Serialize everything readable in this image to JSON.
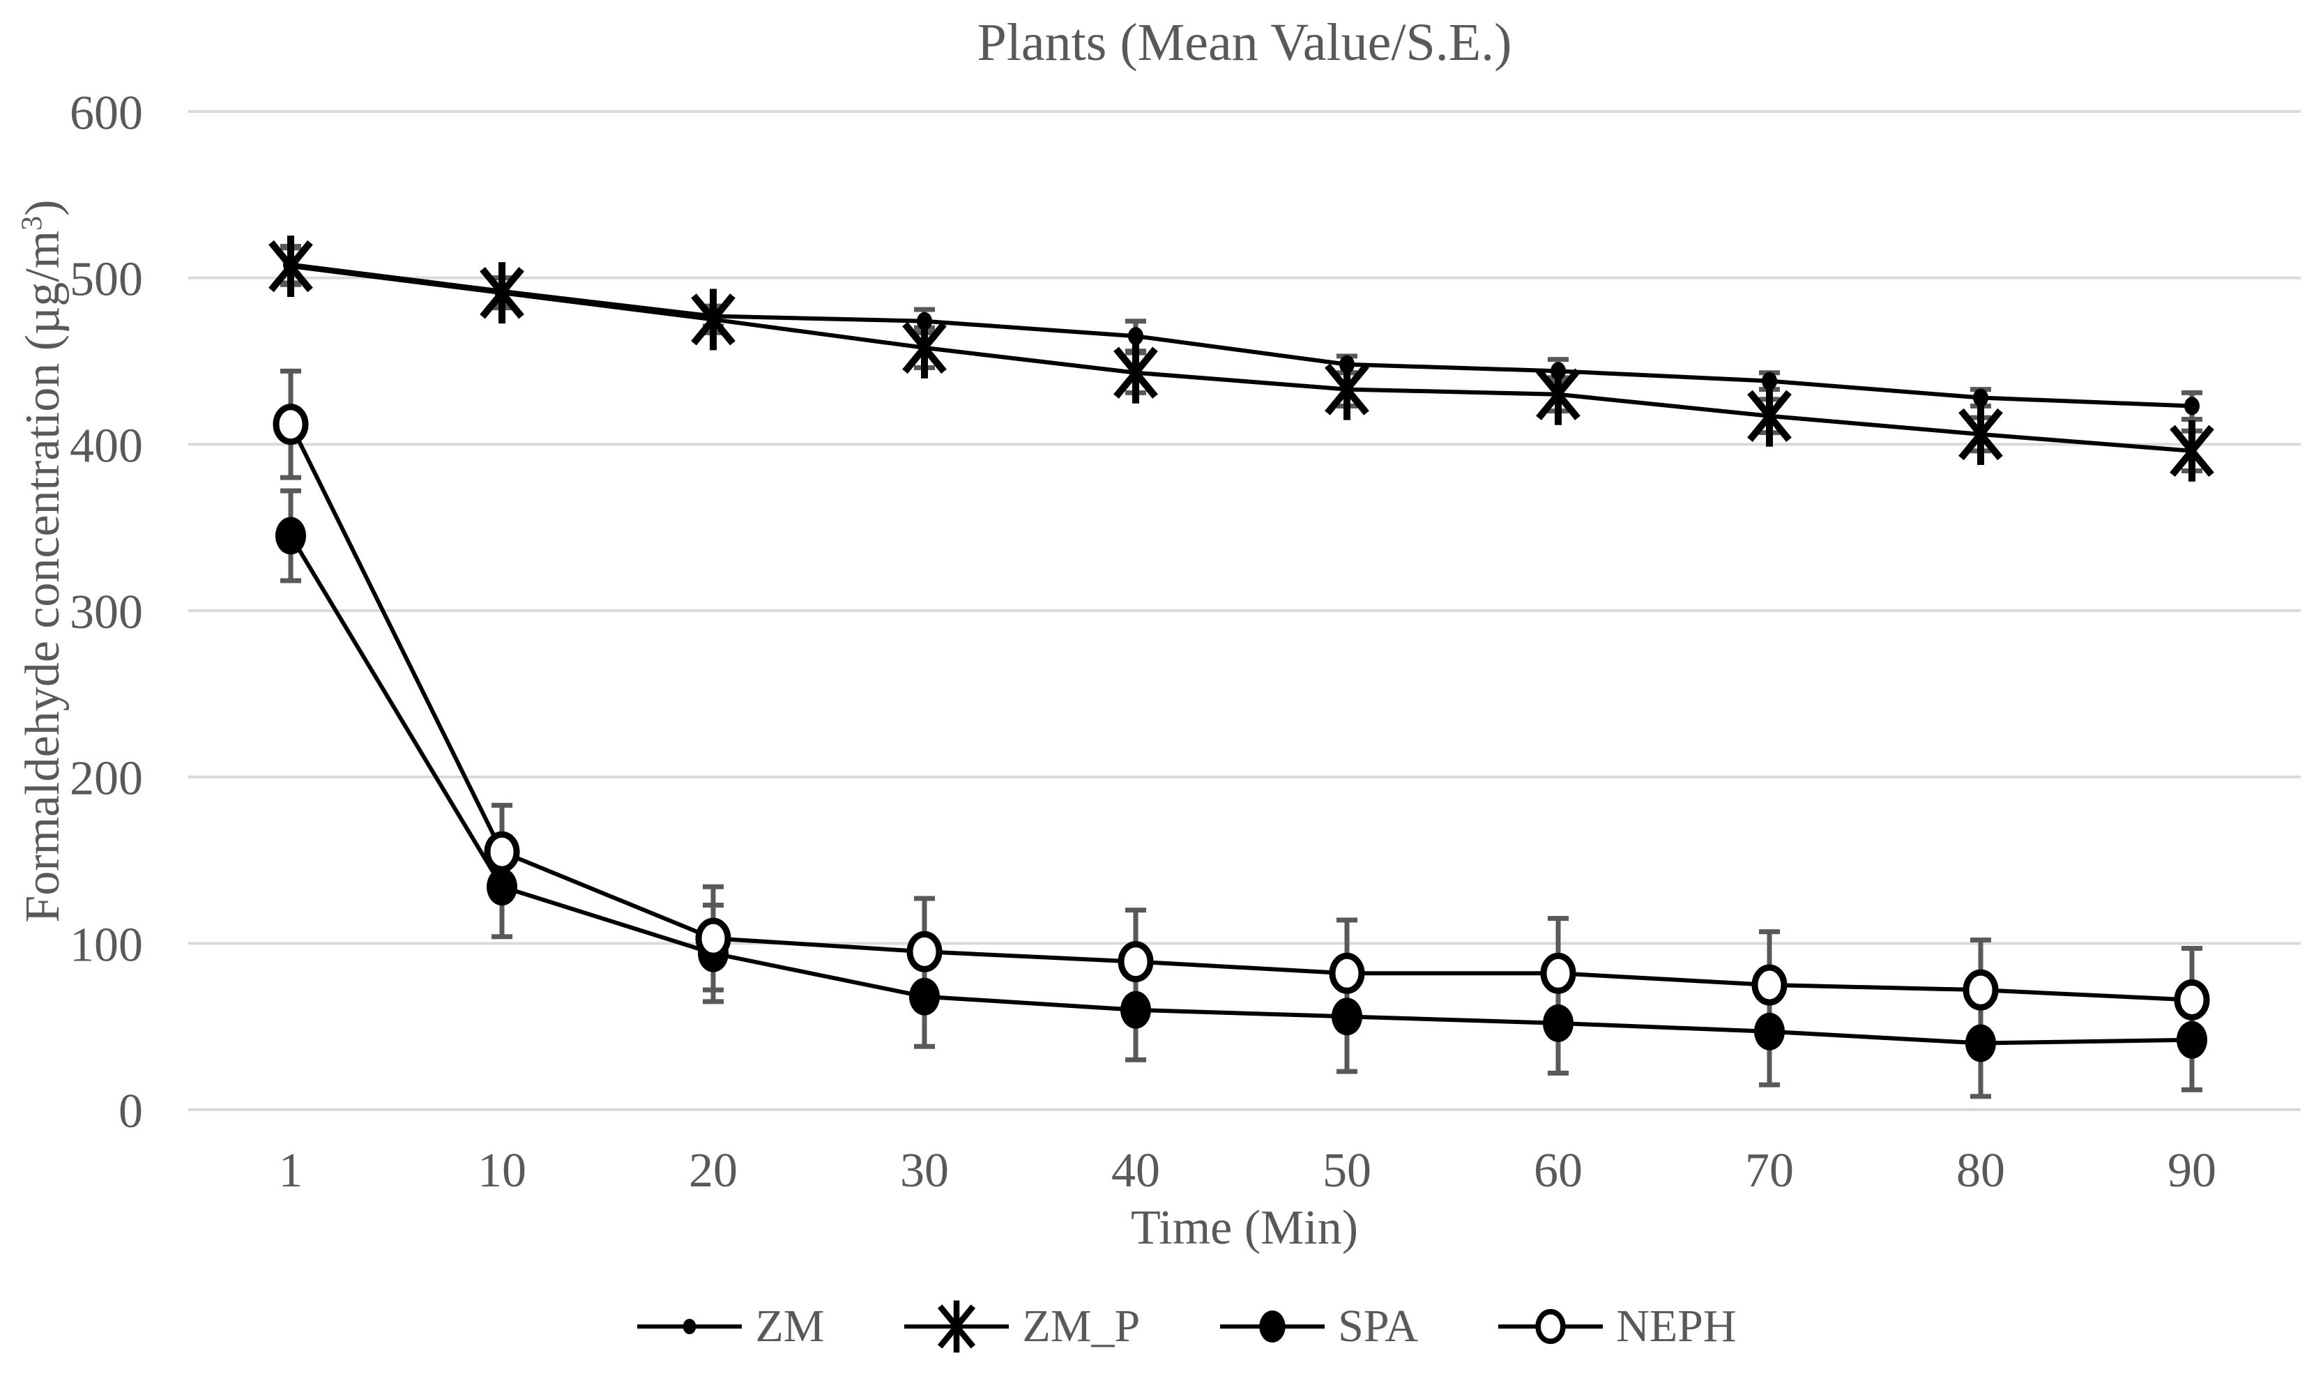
{
  "page": {
    "background": "#ffffff"
  },
  "chart_data": {
    "type": "line",
    "title": "Plants (Mean Value/S.E.)",
    "xlabel": "Time (Min)",
    "ylabel": "Formaldehyde concentration (µg/m³)",
    "ylabel_parts": {
      "main": "Formaldehyde concentration (µg/m",
      "sup": "3",
      "end": ")"
    },
    "categories": [
      "1",
      "10",
      "20",
      "30",
      "40",
      "50",
      "60",
      "70",
      "80",
      "90"
    ],
    "ylim": [
      0,
      600
    ],
    "yticks": [
      0,
      100,
      200,
      300,
      400,
      500,
      600
    ],
    "grid": "horizontal-only",
    "legend_position": "bottom",
    "error_bars": "standard error",
    "series": [
      {
        "name": "ZM",
        "marker": "small-dot",
        "values": [
          508,
          492,
          477,
          474,
          465,
          448,
          444,
          438,
          428,
          423
        ],
        "se": [
          11,
          8,
          6,
          7,
          9,
          5,
          7,
          5,
          5,
          8
        ]
      },
      {
        "name": "ZM_P",
        "marker": "asterisk",
        "values": [
          507,
          491,
          475,
          458,
          443,
          433,
          430,
          417,
          406,
          396
        ],
        "se": [
          11,
          9,
          8,
          12,
          12,
          10,
          10,
          10,
          10,
          12
        ]
      },
      {
        "name": "SPA",
        "marker": "filled-circle",
        "values": [
          345,
          134,
          94,
          68,
          60,
          56,
          52,
          47,
          40,
          42
        ],
        "se": [
          27,
          30,
          29,
          30,
          30,
          33,
          30,
          32,
          32,
          30
        ]
      },
      {
        "name": "NEPH",
        "marker": "open-circle",
        "values": [
          412,
          155,
          103,
          95,
          89,
          82,
          82,
          75,
          72,
          66
        ],
        "se": [
          32,
          28,
          31,
          32,
          31,
          32,
          33,
          32,
          30,
          31
        ]
      }
    ],
    "colors": {
      "series_line": "#000000",
      "marker": "#000000",
      "error_bar": "#595959",
      "gridline": "#d9d9d9",
      "text": "#595959",
      "background": "#ffffff"
    }
  }
}
